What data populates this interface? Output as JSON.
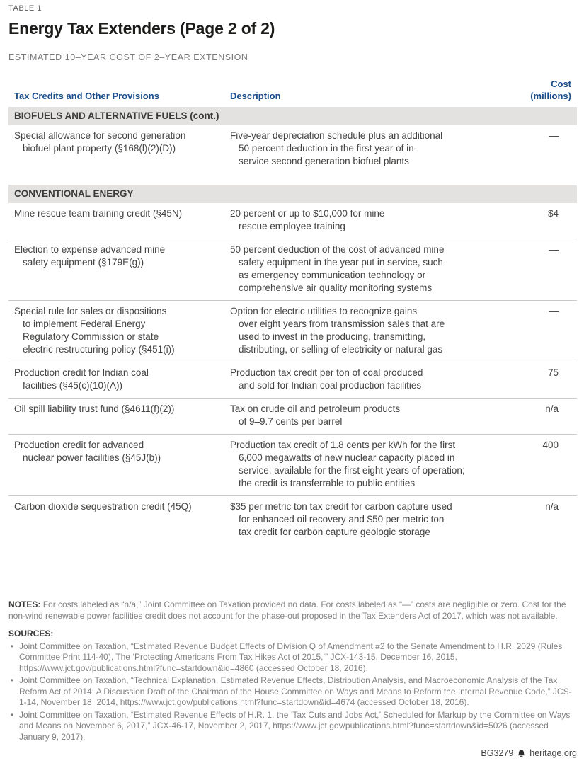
{
  "header": {
    "kicker": "TABLE 1",
    "title": "Energy Tax Extenders (Page 2 of 2)",
    "subtitle": "ESTIMATED 10–YEAR COST OF 2–YEAR EXTENSION"
  },
  "columns": {
    "provisions": "Tax Credits and Other Provisions",
    "description": "Description",
    "cost": "Cost\n(millions)"
  },
  "table": {
    "sections": [
      {
        "header": "BIOFUELS AND ALTERNATIVE FUELS (cont.)",
        "rows": [
          {
            "provision": "Special allowance for second generation\nbiofuel plant property (§168(l)(2)(D))",
            "description": "Five-year depreciation schedule plus an additional\n50 percent deduction in the first year of in-\nservice second generation biofuel plants",
            "cost": "—",
            "divider": false
          }
        ]
      },
      {
        "header": "CONVENTIONAL ENERGY",
        "rows": [
          {
            "provision": "Mine rescue team training credit (§45N)",
            "description": "20 percent or up to $10,000 for mine\nrescue employee training",
            "cost": "$4",
            "divider": true
          },
          {
            "provision": "Election to expense advanced mine\nsafety equipment (§179E(g))",
            "description": "50 percent deduction of the cost of advanced mine\nsafety equipment in the year put in service, such\nas emergency communication technology or\ncomprehensive air quality monitoring systems",
            "cost": "—",
            "divider": true
          },
          {
            "provision": "Special rule for sales or dispositions\nto implement Federal Energy\nRegulatory Commission or state\nelectric restructuring policy (§451(i))",
            "description": "Option for electric utilities to recognize gains\nover eight years from transmission sales that are\nused to invest in the producing, transmitting,\ndistributing, or selling of electricity or natural gas",
            "cost": "—",
            "divider": true
          },
          {
            "provision": "Production credit for Indian coal\nfacilities (§45(c)(10)(A))",
            "description": "Production tax credit per ton of coal produced\nand sold for Indian coal production facilities",
            "cost": "75",
            "divider": true
          },
          {
            "provision": "Oil spill liability trust fund (§4611(f)(2))",
            "description": "Tax on crude oil and petroleum products\nof 9–9.7 cents per barrel",
            "cost": "n/a",
            "divider": true
          },
          {
            "provision": "Production credit for advanced\nnuclear power facilities (§45J(b))",
            "description": "Production tax credit of 1.8 cents per kWh for the first\n6,000 megawatts of new nuclear capacity placed in\nservice, available for the first eight years of operation;\nthe credit is transferrable to public entities",
            "cost": "400",
            "divider": true
          },
          {
            "provision": "Carbon dioxide sequestration credit (45Q)",
            "description": "$35 per metric ton tax credit for carbon capture used\nfor enhanced oil recovery and $50 per metric ton\ntax credit for carbon capture geologic storage",
            "cost": "n/a",
            "divider": false
          }
        ]
      }
    ]
  },
  "notes": {
    "label": "NOTES:",
    "text": "For costs labeled as “n/a,” Joint Committee on Taxation provided no data. For costs labeled as “—” costs are negligible or zero. Cost for the non-wind renewable power facilities credit does not account for the phase-out proposed in the Tax Extenders Act of 2017, which was not available."
  },
  "sources": {
    "label": "SOURCES:",
    "items": [
      "Joint Committee on Taxation, “Estimated Revenue Budget Effects of Division Q of Amendment #2 to the Senate Amendment to H.R. 2029 (Rules Committee Print 114-40), The ‘Protecting Americans From Tax Hikes Act of 2015,’” JCX-143-15, December 16, 2015, https://www.jct.gov/publications.html?func=startdown&id=4860 (accessed October 18, 2016).",
      "Joint Committee on Taxation, “Technical Explanation, Estimated Revenue Effects, Distribution Analysis, and Macroeconomic Analysis of the Tax Reform Act of 2014: A Discussion Draft of the Chairman of the House Committee on Ways and Means to Reform the Internal Revenue Code,” JCS-1-14, November 18, 2014, https://www.jct.gov/publications.html?func=startdown&id=4674 (accessed October 18, 2016).",
      "Joint Committee on Taxation, “Estimated Revenue Effects of H.R. 1, the ‘Tax Cuts and Jobs Act,’ Scheduled for Markup by the Committee on Ways and Means on November 6, 2017,” JCX-46-17, November 2, 2017, https://www.jct.gov/publications.html?func=startdown&id=5026 (accessed January 9, 2017)."
    ]
  },
  "footer": {
    "doc_id": "BG3279",
    "icon": "liberty-bell-icon",
    "site": "heritage.org"
  },
  "colors": {
    "accent_blue": "#1b4e8b",
    "band_gray": "#e3e2e0",
    "text_dark": "#3d3d3b",
    "muted_gray": "#808184",
    "divider": "#c9c9c8"
  }
}
